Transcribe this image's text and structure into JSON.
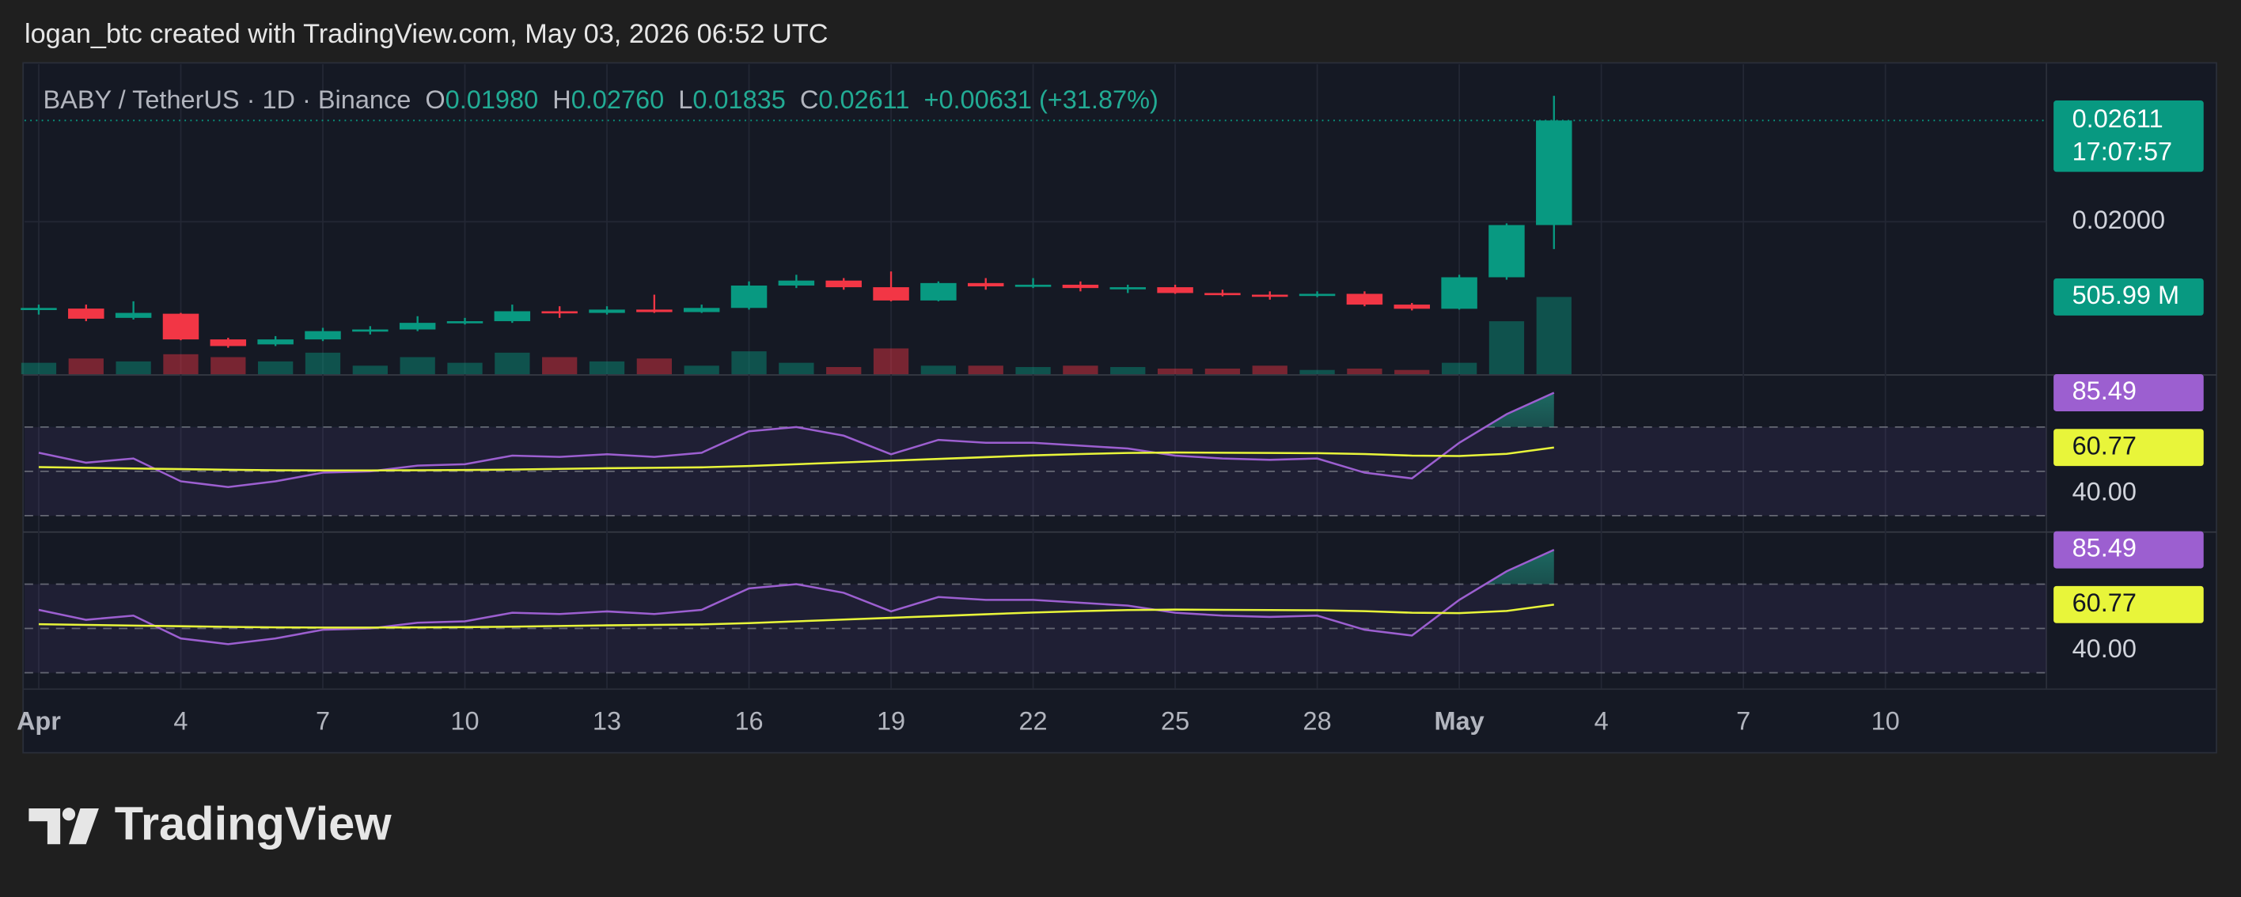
{
  "header": "logan_btc created with TradingView.com, May 03, 2026 06:52 UTC",
  "footer_brand": "TradingView",
  "chart_data": [
    {
      "type": "candlestick",
      "legend": {
        "symbol": "BABY / TetherUS · 1D · Binance",
        "o_label": "O",
        "o": "0.01980",
        "h_label": "H",
        "h": "0.02760",
        "l_label": "L",
        "l": "0.01835",
        "c_label": "C",
        "c": "0.02611",
        "change": "+0.00631 (+31.87%)"
      },
      "x": [
        1,
        2,
        3,
        4,
        5,
        6,
        7,
        8,
        9,
        10,
        11,
        12,
        13,
        14,
        15,
        16,
        17,
        18,
        19,
        20,
        21,
        22,
        23,
        24,
        25,
        26,
        27,
        28,
        29,
        30,
        31,
        32,
        33
      ],
      "open": [
        0.01476,
        0.01476,
        0.0142,
        0.01445,
        0.0129,
        0.0126,
        0.0129,
        0.0134,
        0.0135,
        0.0139,
        0.014,
        0.0146,
        0.0145,
        0.0147,
        0.01455,
        0.0148,
        0.01615,
        0.01645,
        0.01605,
        0.01525,
        0.0163,
        0.0161,
        0.0162,
        0.016,
        0.01605,
        0.0157,
        0.0156,
        0.01555,
        0.01565,
        0.015,
        0.01475,
        0.01665,
        0.0198
      ],
      "high": [
        0.015,
        0.015,
        0.0152,
        0.0145,
        0.013,
        0.0131,
        0.0136,
        0.0137,
        0.0143,
        0.0142,
        0.015,
        0.0149,
        0.0149,
        0.0156,
        0.015,
        0.0164,
        0.0168,
        0.0166,
        0.017,
        0.0164,
        0.0166,
        0.0166,
        0.0164,
        0.0162,
        0.0162,
        0.0159,
        0.0158,
        0.0158,
        0.0158,
        0.0151,
        0.0168,
        0.0199,
        0.0276
      ],
      "low": [
        0.0144,
        0.014,
        0.0141,
        0.01285,
        0.0124,
        0.0125,
        0.0128,
        0.0132,
        0.0134,
        0.0138,
        0.0139,
        0.0142,
        0.0144,
        0.0145,
        0.0145,
        0.0147,
        0.016,
        0.0159,
        0.0152,
        0.0152,
        0.0159,
        0.016,
        0.0158,
        0.0157,
        0.01565,
        0.0155,
        0.0153,
        0.01545,
        0.0149,
        0.01465,
        0.0147,
        0.0165,
        0.01835
      ],
      "close": [
        0.0148,
        0.01415,
        0.0145,
        0.0129,
        0.0125,
        0.0129,
        0.0134,
        0.0135,
        0.0139,
        0.014,
        0.0146,
        0.0145,
        0.0147,
        0.01455,
        0.0148,
        0.01615,
        0.01645,
        0.01605,
        0.01525,
        0.0163,
        0.0161,
        0.0162,
        0.016,
        0.01605,
        0.0157,
        0.0156,
        0.01555,
        0.01565,
        0.015,
        0.01475,
        0.01665,
        0.0198,
        0.02611
      ],
      "volume": [
        75000000,
        103000000,
        84000000,
        131000000,
        112000000,
        84000000,
        141000000,
        56000000,
        112000000,
        75000000,
        141000000,
        112000000,
        84000000,
        103000000,
        56000000,
        150000000,
        75000000,
        47000000,
        169000000,
        56000000,
        56000000,
        47000000,
        56000000,
        47000000,
        37000000,
        37000000,
        56000000,
        28000000,
        37000000,
        28000000,
        75000000,
        347000000,
        505990000
      ],
      "last_volume_label": "505.99 M",
      "countdown": "17:07:57",
      "up_color": "#089981",
      "down_color": "#f23645",
      "xlim": [
        0.7,
        43.4
      ],
      "xticks": [
        {
          "value": 1,
          "label": "Apr"
        },
        4,
        7,
        10,
        13,
        16,
        19,
        22,
        25,
        28,
        {
          "value": 31,
          "label": "May"
        },
        {
          "value": 34,
          "label": "4"
        },
        {
          "value": 37,
          "label": "7"
        },
        {
          "value": 40,
          "label": "10"
        }
      ],
      "ylim": [
        0.0108,
        0.0295
      ],
      "yticks": [
        {
          "value": 0.02,
          "label": "0.02000"
        }
      ],
      "volume_ylim": [
        0,
        2030000000
      ],
      "grid": true
    },
    {
      "type": "line",
      "ylim": [
        22.9,
        93.2
      ],
      "yticks": [
        {
          "value": 40,
          "label": "40.00"
        }
      ],
      "levels": [
        70,
        50,
        30
      ],
      "series": [
        {
          "color": "#9c5fd0",
          "values": [
            58.4,
            53.9,
            55.8,
            45.5,
            42.9,
            45.5,
            49.4,
            50.0,
            52.6,
            53.2,
            57.1,
            56.5,
            57.7,
            56.5,
            58.4,
            68.1,
            70.0,
            66.1,
            57.7,
            64.2,
            62.9,
            62.9,
            61.6,
            60.3,
            57.1,
            55.8,
            55.2,
            55.8,
            49.4,
            46.8,
            62.9,
            75.8,
            85.49
          ]
        },
        {
          "color": "#e8f53a",
          "values": [
            51.9,
            51.6,
            51.3,
            51.0,
            50.7,
            50.5,
            50.4,
            50.4,
            50.5,
            50.6,
            50.8,
            51.1,
            51.4,
            51.6,
            51.8,
            52.4,
            53.2,
            54.0,
            54.8,
            55.6,
            56.4,
            57.2,
            57.8,
            58.3,
            58.5,
            58.4,
            58.3,
            58.2,
            57.8,
            57.1,
            56.9,
            57.9,
            60.77
          ]
        }
      ]
    },
    {
      "type": "line",
      "ylim": [
        22.9,
        93.2
      ],
      "yticks": [
        {
          "value": 40,
          "label": "40.00"
        }
      ],
      "levels": [
        70,
        50,
        30
      ],
      "series": [
        {
          "color": "#9c5fd0",
          "values": [
            58.4,
            53.9,
            55.8,
            45.5,
            42.9,
            45.5,
            49.4,
            50.0,
            52.6,
            53.2,
            57.1,
            56.5,
            57.7,
            56.5,
            58.4,
            68.1,
            70.0,
            66.1,
            57.7,
            64.2,
            62.9,
            62.9,
            61.6,
            60.3,
            57.1,
            55.8,
            55.2,
            55.8,
            49.4,
            46.8,
            62.9,
            75.8,
            85.49
          ]
        },
        {
          "color": "#e8f53a",
          "values": [
            51.9,
            51.6,
            51.3,
            51.0,
            50.7,
            50.5,
            50.4,
            50.4,
            50.5,
            50.6,
            50.8,
            51.1,
            51.4,
            51.6,
            51.8,
            52.4,
            53.2,
            54.0,
            54.8,
            55.6,
            56.4,
            57.2,
            57.8,
            58.3,
            58.5,
            58.4,
            58.3,
            58.2,
            57.8,
            57.1,
            56.9,
            57.9,
            60.77
          ]
        }
      ]
    }
  ]
}
